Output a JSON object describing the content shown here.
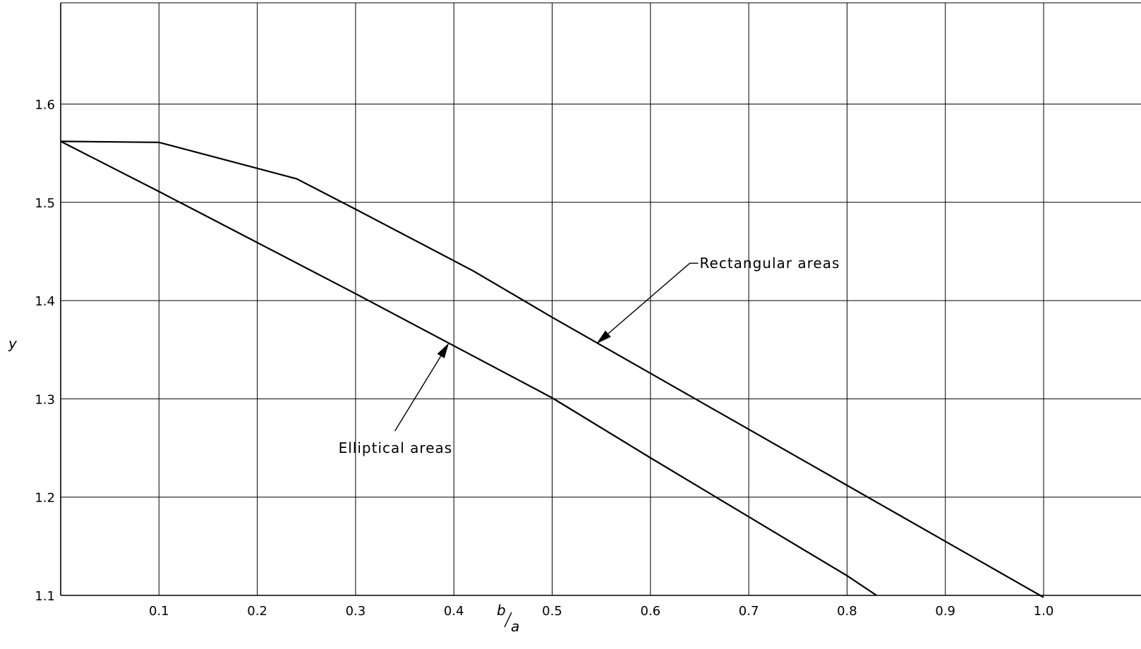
{
  "chart_data": {
    "type": "line",
    "title": "",
    "xlabel_num": "b",
    "xlabel_den": "a",
    "ylabel": "y",
    "xlim": [
      0,
      1.08
    ],
    "ylim": [
      1.1,
      1.7
    ],
    "grid": true,
    "x_ticks": [
      0.1,
      0.2,
      0.3,
      0.4,
      0.5,
      0.6,
      0.7,
      0.8,
      0.9,
      1.0
    ],
    "x_tick_labels": [
      "0.1",
      "0.2",
      "0.3",
      "0.4",
      "0.5",
      "0.6",
      "0.7",
      "0.8",
      "0.9",
      "1.0"
    ],
    "y_ticks": [
      1.1,
      1.2,
      1.3,
      1.4,
      1.5,
      1.6
    ],
    "y_tick_labels": [
      "1.1",
      "1.2",
      "1.3",
      "1.4",
      "1.5",
      "1.6"
    ],
    "series": [
      {
        "name": "Rectangular areas",
        "x": [
          0,
          0.1,
          0.24,
          0.3,
          0.42,
          0.5,
          0.6,
          0.7,
          0.8,
          0.9,
          1.0
        ],
        "y": [
          1.562,
          1.561,
          1.524,
          1.493,
          1.43,
          1.383,
          1.326,
          1.269,
          1.212,
          1.155,
          1.098
        ]
      },
      {
        "name": "Elliptical areas",
        "x": [
          0,
          0.1,
          0.2,
          0.3,
          0.4,
          0.5,
          0.6,
          0.7,
          0.8,
          0.83
        ],
        "y": [
          1.562,
          1.511,
          1.459,
          1.407,
          1.354,
          1.301,
          1.24,
          1.18,
          1.12,
          1.1
        ]
      }
    ],
    "annotations": [
      {
        "text": "Rectangular areas",
        "series": "Rectangular areas",
        "label_x": 0.64,
        "label_y": 1.438,
        "point_x": 0.545,
        "point_y": 1.356
      },
      {
        "text": "Elliptical areas",
        "series": "Elliptical areas",
        "label_x": 0.34,
        "label_y": 1.25,
        "point_x": 0.395,
        "point_y": 1.357
      }
    ]
  }
}
